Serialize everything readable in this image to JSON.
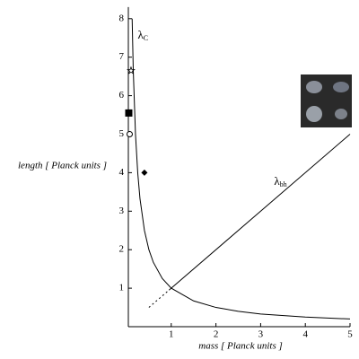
{
  "chart_data": {
    "type": "line",
    "xlabel": "mass [ Planck units ]",
    "ylabel": "length [ Planck units ]",
    "xlim": [
      0,
      5
    ],
    "ylim": [
      0,
      8.3
    ],
    "xticks": [
      1,
      2,
      3,
      4,
      5
    ],
    "yticks": [
      1,
      2,
      3,
      4,
      5,
      6,
      7,
      8
    ],
    "series": [
      {
        "color": "#000000",
        "style": "solid",
        "x": [
          0.125,
          0.15,
          0.2,
          0.25,
          0.3,
          0.4,
          0.5,
          0.6,
          0.8,
          1,
          1.5,
          2,
          2.5,
          3,
          4,
          5
        ],
        "values": [
          8,
          6.67,
          5,
          4,
          3.33,
          2.5,
          2,
          1.67,
          1.25,
          1,
          0.67,
          0.5,
          0.4,
          0.33,
          0.25,
          0.2
        ]
      },
      {
        "color": "#000000",
        "style": "solid",
        "x": [
          0.95,
          5
        ],
        "values": [
          0.95,
          5
        ]
      },
      {
        "color": "#000000",
        "style": "dotted",
        "x": [
          0.5,
          0.95
        ],
        "values": [
          0.5,
          0.95
        ]
      }
    ],
    "markers": [
      {
        "symbol": "star",
        "x": 0.1,
        "y": 6.65
      },
      {
        "symbol": "square",
        "x": 0.05,
        "y": 5.55
      },
      {
        "symbol": "circle",
        "x": 0.07,
        "y": 5
      },
      {
        "symbol": "diamond",
        "x": 0.4,
        "y": 4
      }
    ],
    "annotations": [
      {
        "text": "λ",
        "sub": "C",
        "x": 0.25,
        "y": 7.55
      },
      {
        "text": "λ",
        "sub": "bh",
        "x": 3.3,
        "y": 3.75
      }
    ]
  }
}
